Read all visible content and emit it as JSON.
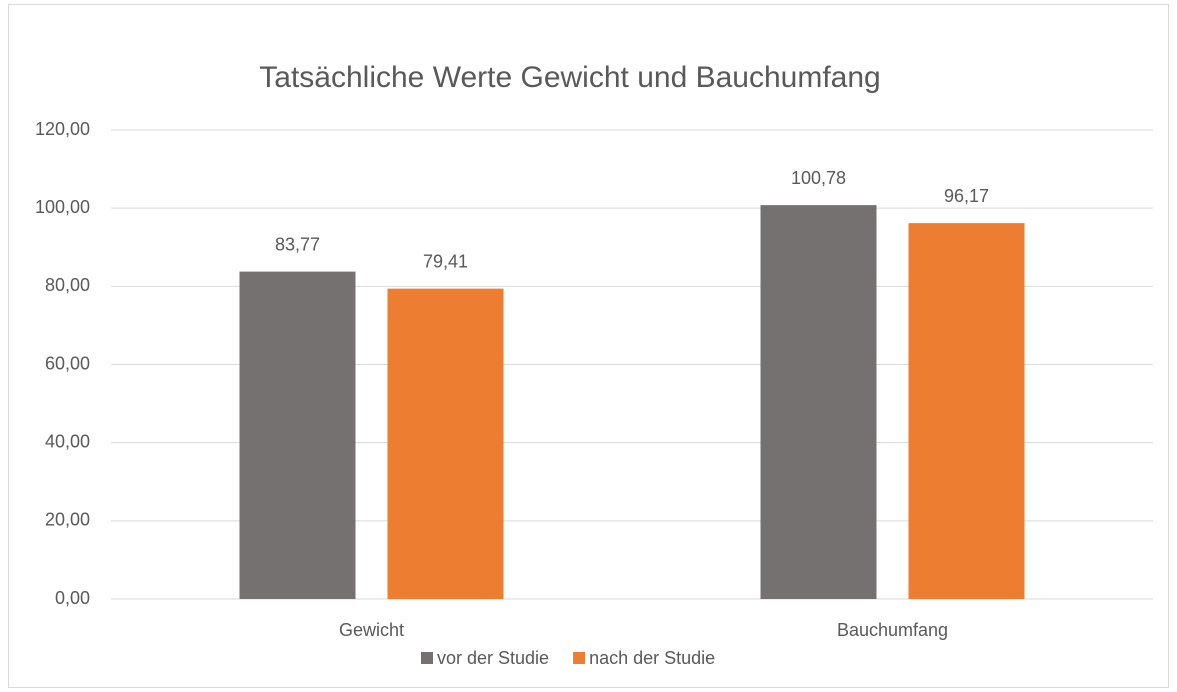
{
  "chart_data": {
    "type": "bar",
    "title": "Tatsächliche Werte Gewicht und Bauchumfang",
    "categories": [
      "Gewicht",
      "Bauchumfang"
    ],
    "series": [
      {
        "name": "vor der Studie",
        "color": "#767171",
        "values": [
          83.77,
          100.78
        ],
        "value_labels": [
          "83,77",
          "100,78"
        ]
      },
      {
        "name": "nach der Studie",
        "color": "#ed7d31",
        "values": [
          79.41,
          96.17
        ],
        "value_labels": [
          "79,41",
          "96,17"
        ]
      }
    ],
    "ylim": [
      0,
      120
    ],
    "yticks": [
      {
        "value": 0,
        "label": "0,00"
      },
      {
        "value": 20,
        "label": "20,00"
      },
      {
        "value": 40,
        "label": "40,00"
      },
      {
        "value": 60,
        "label": "60,00"
      },
      {
        "value": 80,
        "label": "80,00"
      },
      {
        "value": 100,
        "label": "100,00"
      },
      {
        "value": 120,
        "label": "120,00"
      }
    ],
    "grid": true,
    "legend": "bottom"
  }
}
